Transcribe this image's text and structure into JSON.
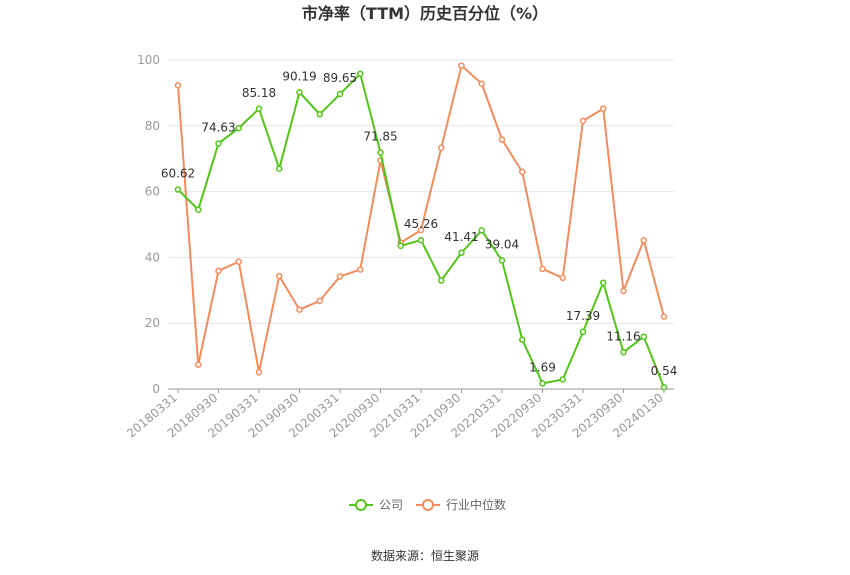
{
  "chart_data": {
    "type": "line",
    "title": "市净率（TTM）历史百分位（%）",
    "source": "数据来源：恒生聚源",
    "ylim": [
      0,
      100
    ],
    "yticks": [
      0,
      20,
      40,
      60,
      80,
      100
    ],
    "grid": true,
    "legend_position": "bottom",
    "x": [
      "20180331",
      "20180630",
      "20180930",
      "20181231",
      "20190331",
      "20190630",
      "20190930",
      "20191231",
      "20200331",
      "20200630",
      "20200930",
      "20201231",
      "20210331",
      "20210630",
      "20210930",
      "20211231",
      "20220331",
      "20220630",
      "20220930",
      "20221231",
      "20230331",
      "20230630",
      "20230930",
      "20231231",
      "20240130"
    ],
    "xtick_labels": [
      "20180331",
      "20180930",
      "20190331",
      "20190930",
      "20200331",
      "20200930",
      "20210331",
      "20210930",
      "20220331",
      "20220930",
      "20230331",
      "20230930",
      "20240130"
    ],
    "xtick_indices": [
      0,
      2,
      4,
      6,
      8,
      10,
      12,
      14,
      16,
      18,
      20,
      22,
      24
    ],
    "series": [
      {
        "name": "公司",
        "color": "#52c41a",
        "values": [
          60.62,
          54.5,
          74.63,
          79.3,
          85.18,
          67.0,
          90.19,
          83.5,
          89.65,
          95.8,
          71.85,
          43.5,
          45.26,
          33.0,
          41.41,
          48.2,
          39.04,
          15.0,
          1.69,
          2.9,
          17.39,
          32.3,
          11.16,
          15.9,
          0.54
        ],
        "labeled_indices": [
          0,
          2,
          4,
          6,
          8,
          10,
          12,
          14,
          16,
          18,
          20,
          22,
          24
        ]
      },
      {
        "name": "行业中位数",
        "color": "#f28c5e",
        "values": [
          92.3,
          7.4,
          35.9,
          38.7,
          5.1,
          34.3,
          24.1,
          26.8,
          34.2,
          36.3,
          69.5,
          44.5,
          48.3,
          73.3,
          98.3,
          92.8,
          75.8,
          66.0,
          36.5,
          33.8,
          81.5,
          85.2,
          29.8,
          45.2,
          22.0
        ]
      }
    ]
  }
}
